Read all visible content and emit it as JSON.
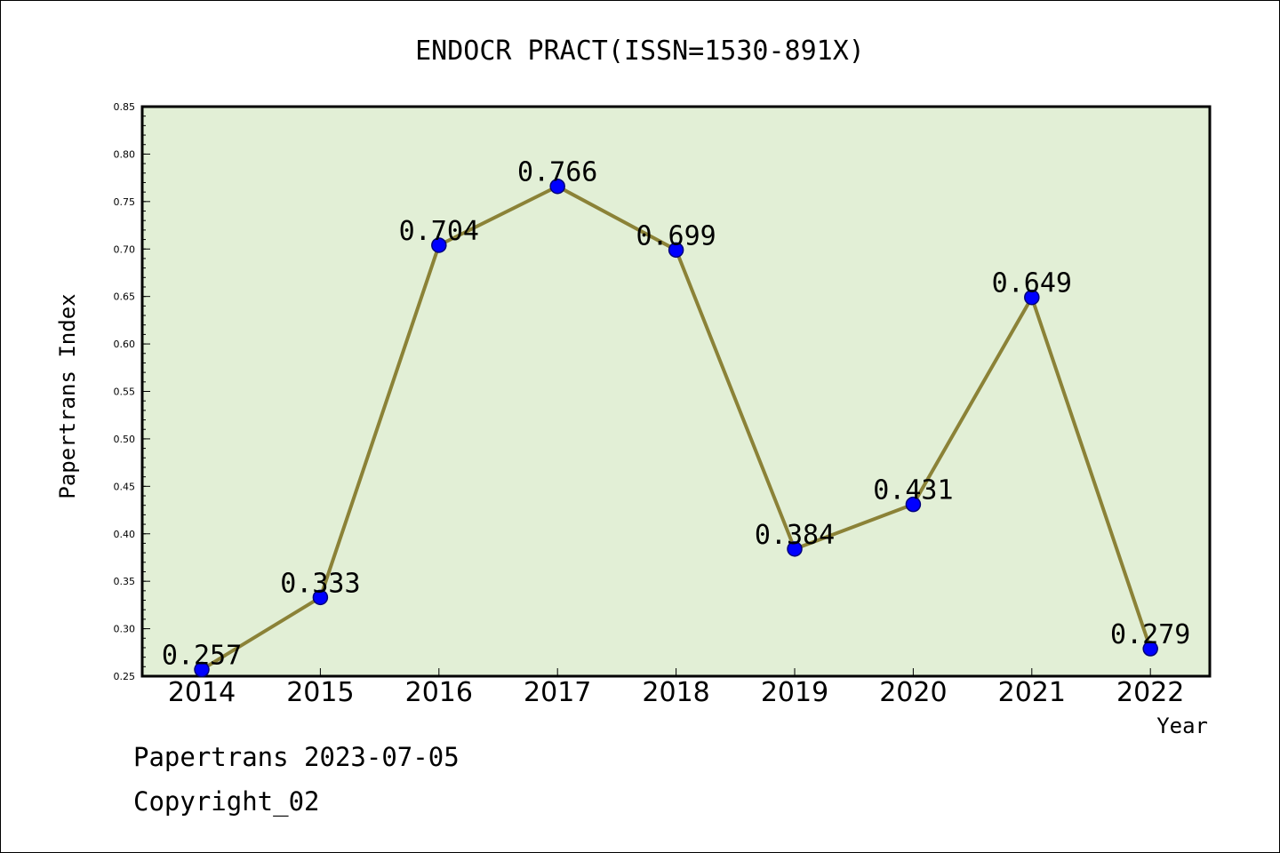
{
  "chart_data": {
    "type": "line",
    "title": "ENDOCR PRACT(ISSN=1530-891X)",
    "xlabel": "Year",
    "ylabel": "Papertrans Index",
    "categories": [
      "2014",
      "2015",
      "2016",
      "2017",
      "2018",
      "2019",
      "2020",
      "2021",
      "2022"
    ],
    "series": [
      {
        "values": [
          0.257,
          0.333,
          0.704,
          0.766,
          0.699,
          0.384,
          0.431,
          0.649,
          0.279
        ]
      }
    ],
    "data_labels": [
      "0.257",
      "0.333",
      "0.704",
      "0.766",
      "0.699",
      "0.384",
      "0.431",
      "0.649",
      "0.279"
    ],
    "ylim": [
      0.25,
      0.85
    ],
    "yticks": [
      "0.25",
      "0.30",
      "0.35",
      "0.40",
      "0.45",
      "0.50",
      "0.55",
      "0.60",
      "0.65",
      "0.70",
      "0.75",
      "0.80",
      "0.85"
    ],
    "grid": false,
    "legend": "none",
    "colors": {
      "plot_bg": "#e2efd6",
      "line": "#8b8237",
      "marker": "#0000ff",
      "marker_edge": "#00007a"
    }
  },
  "footer": {
    "line1": "Papertrans 2023-07-05",
    "line2": "Copyright_02"
  }
}
